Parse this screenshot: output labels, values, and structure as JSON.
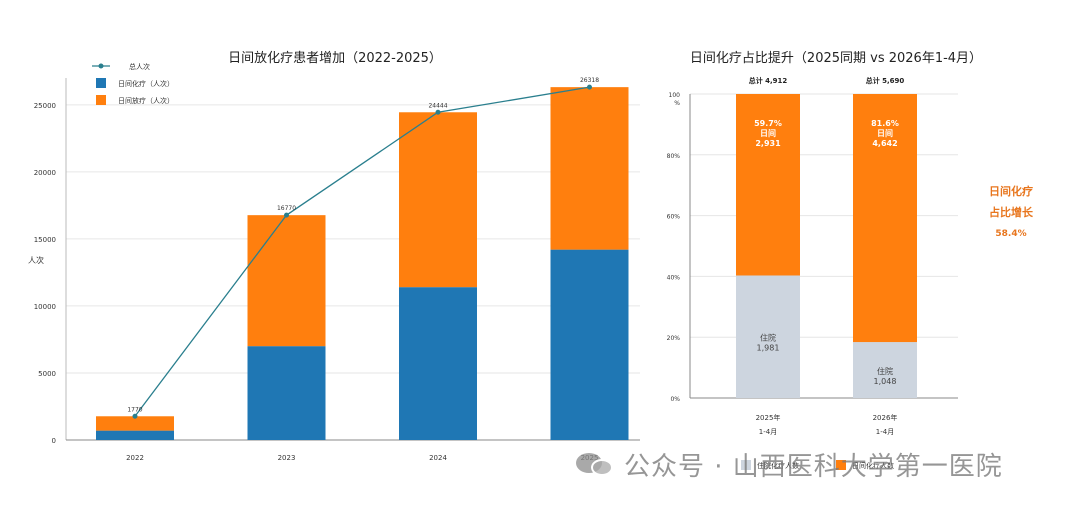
{
  "chart_data": [
    {
      "type": "bar",
      "stacked": true,
      "title": "日间放化疗患者增加（2022-2025）",
      "ylabel": "人次",
      "ylim": [
        0,
        27000
      ],
      "yticks": [
        0,
        5000,
        10000,
        15000,
        20000,
        25000
      ],
      "categories": [
        "2022",
        "2023",
        "2024",
        "2025"
      ],
      "series": [
        {
          "name": "日间化疗（人次）",
          "kind": "bar",
          "color": "#1f77b4",
          "values": [
            700,
            7000,
            11400,
            14200
          ]
        },
        {
          "name": "日间放疗（人次）",
          "kind": "bar",
          "color": "#ff7f0e",
          "values": [
            1070,
            9770,
            13044,
            12118
          ]
        },
        {
          "name": "总人次",
          "kind": "line",
          "color": "#2a7f8e",
          "values": [
            1770,
            16770,
            24444,
            26318
          ]
        }
      ],
      "point_labels": [
        "1770",
        "16770",
        "24444",
        "26318"
      ],
      "legend_position": "top-left",
      "grid": "horizontal"
    },
    {
      "type": "bar",
      "stacked": true,
      "percent": true,
      "title": "日间化疗占比提升（2025同期 vs 2026年1-4月）",
      "ylim": [
        0,
        100
      ],
      "yticks": [
        "0%",
        "20%",
        "40%",
        "60%",
        "80%",
        "100\n%"
      ],
      "categories": [
        "2025年\n1-4月",
        "2026年\n1-4月"
      ],
      "totals": [
        "总计 4,912",
        "总计 5,690"
      ],
      "series": [
        {
          "name": "住院化疗人数",
          "color": "#cdd5df",
          "values": [
            40.3,
            18.4
          ],
          "labels": [
            "住院\n1,981",
            "住院\n1,048"
          ]
        },
        {
          "name": "日间化疗人数",
          "color": "#ff7f0e",
          "values": [
            59.7,
            81.6
          ],
          "labels": [
            "59.7%\n日间\n2,931",
            "81.6%\n日间\n4,642"
          ]
        }
      ],
      "annotation": [
        "日间化疗",
        "占比增长",
        "58.4%"
      ],
      "annotation_color": "#e8761e"
    }
  ],
  "watermark": "公众号 · 山西医科大学第一医院"
}
